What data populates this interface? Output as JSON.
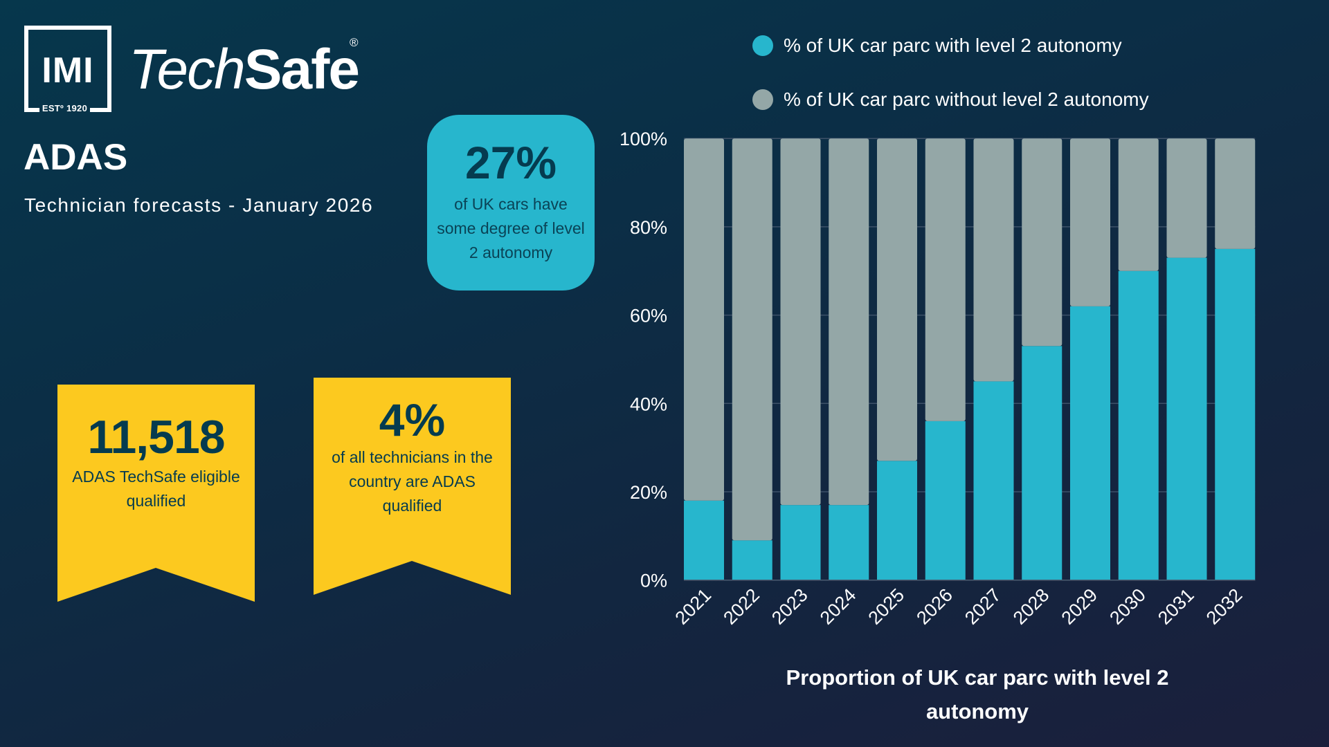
{
  "logo": {
    "mark_text": "IMI",
    "est_text": "ESTº 1920",
    "brand_light": "Tech",
    "brand_bold": "Safe",
    "registered": "®"
  },
  "header": {
    "title": "ADAS",
    "subtitle": "Technician forecasts - January 2026"
  },
  "callout": {
    "value": "27%",
    "text": "of UK cars have some degree of level 2 autonomy",
    "color": "#27b6cd"
  },
  "ribbons": [
    {
      "value": "11,518",
      "text": "ADAS TechSafe eligible qualified"
    },
    {
      "value": "4%",
      "text": "of all technicians in the country are ADAS qualified"
    }
  ],
  "colors": {
    "ribbon": "#fcc91f",
    "with": "#27b6cd",
    "without": "#94a7a7",
    "dark_text": "#053b4f"
  },
  "chart_data": {
    "type": "bar",
    "stacked": true,
    "title": "Proportion of UK car parc with level 2 autonomy",
    "xlabel": "",
    "ylabel": "",
    "categories": [
      "2021",
      "2022",
      "2023",
      "2024",
      "2025",
      "2026",
      "2027",
      "2028",
      "2029",
      "2030",
      "2031",
      "2032"
    ],
    "series": [
      {
        "name": "% of UK car parc with level 2 autonomy",
        "color": "#27b6cd",
        "values": [
          18,
          9,
          17,
          17,
          27,
          36,
          45,
          53,
          62,
          70,
          73,
          75
        ]
      },
      {
        "name": "% of UK car parc without level 2 autonomy",
        "color": "#94a7a7",
        "values": [
          82,
          91,
          83,
          83,
          73,
          64,
          55,
          47,
          38,
          30,
          27,
          25
        ]
      }
    ],
    "ylim": [
      0,
      100
    ],
    "yticks": [
      0,
      20,
      40,
      60,
      80,
      100
    ],
    "ytick_labels": [
      "0%",
      "20%",
      "40%",
      "60%",
      "80%",
      "100%"
    ],
    "grid": true,
    "legend_position": "top"
  }
}
